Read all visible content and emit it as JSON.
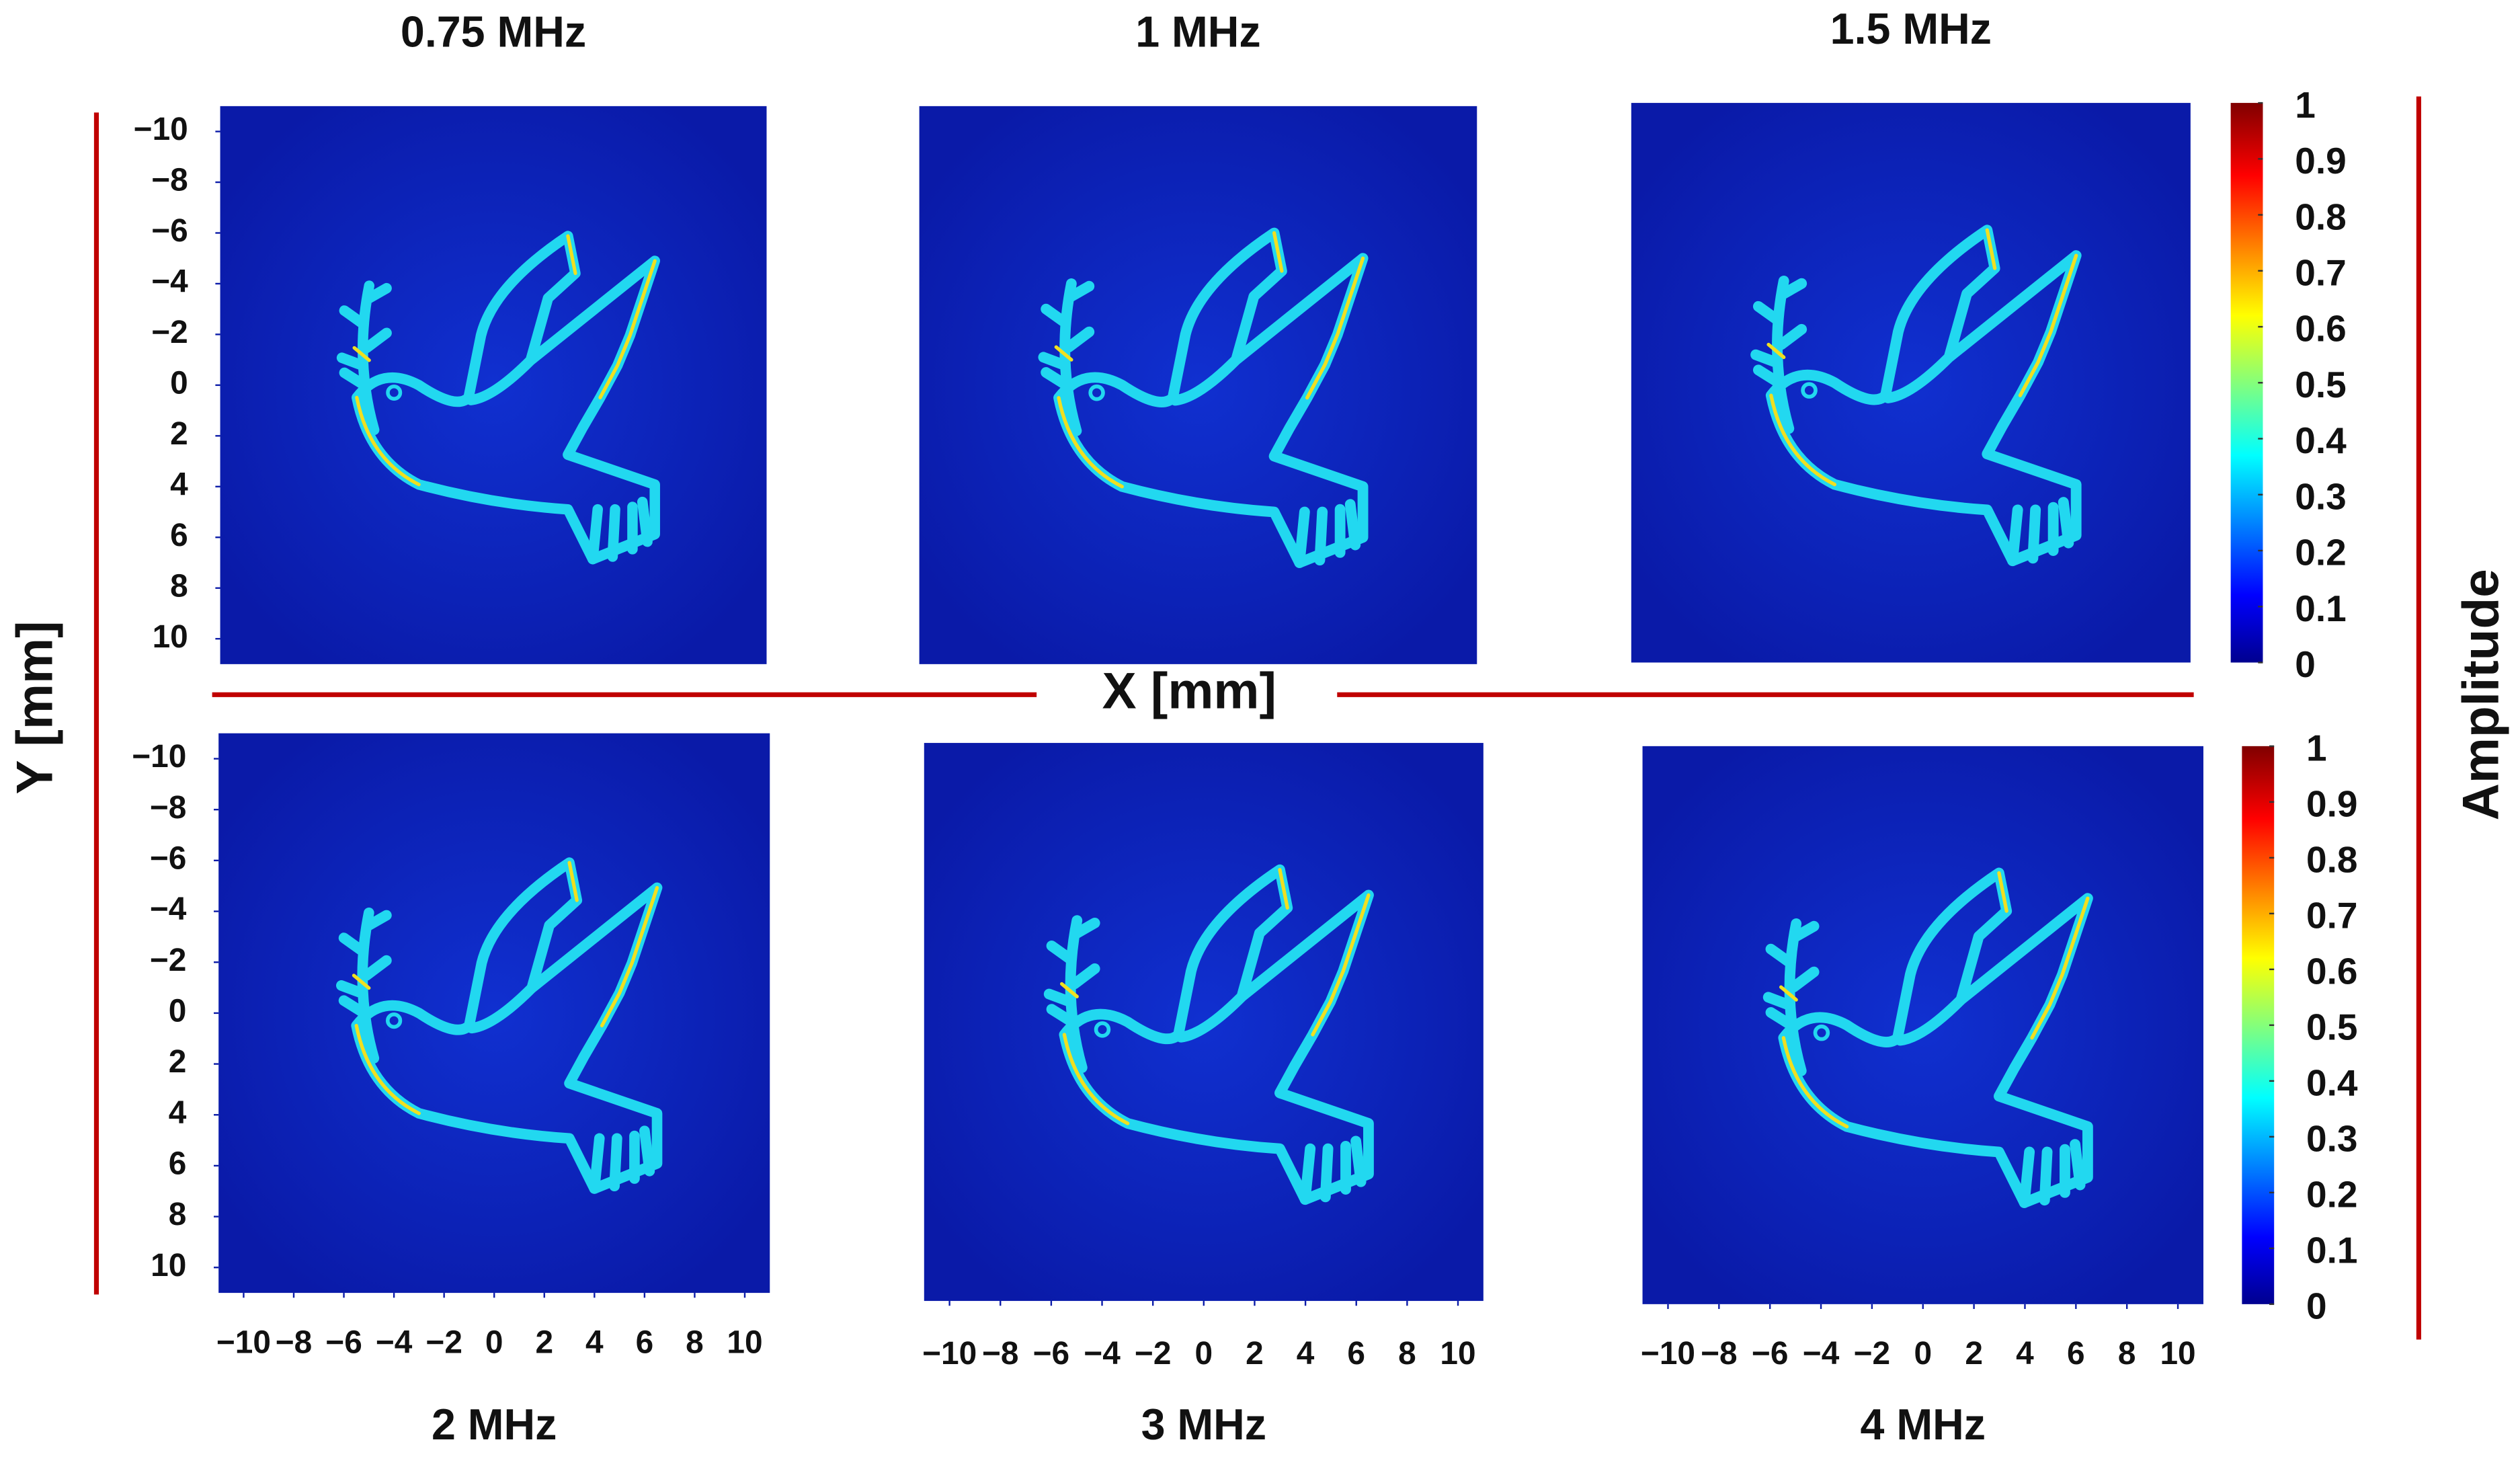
{
  "figure": {
    "x_label": "X [mm]",
    "y_label": "Y [mm]",
    "colorbar_label": "Amplitude"
  },
  "chart_data": [
    {
      "type": "heatmap",
      "title": "0.75 MHz",
      "xlim": [
        -11,
        11
      ],
      "ylim": [
        11,
        -11
      ],
      "yticks": [
        {
          "value": -10,
          "label": "−10"
        },
        {
          "value": -8,
          "label": "−8"
        },
        {
          "value": -6,
          "label": "−6"
        },
        {
          "value": -4,
          "label": "−4"
        },
        {
          "value": -2,
          "label": "−2"
        },
        0,
        2,
        4,
        6,
        8,
        10
      ]
    },
    {
      "type": "heatmap",
      "title": "1 MHz",
      "xlim": [
        -11,
        11
      ],
      "ylim": [
        11,
        -11
      ]
    },
    {
      "type": "heatmap",
      "title": "1.5 MHz",
      "xlim": [
        -11,
        11
      ],
      "ylim": [
        11,
        -11
      ]
    },
    {
      "type": "colorbar",
      "ylim": [
        0,
        1
      ],
      "yticks": [
        0,
        0.1,
        0.2,
        0.3,
        0.4,
        0.5,
        0.6,
        0.7,
        0.8,
        0.9,
        1
      ]
    },
    {
      "type": "heatmap",
      "title": "2 MHz",
      "xlim": [
        -11,
        11
      ],
      "ylim": [
        11,
        -11
      ],
      "yticks": [
        {
          "value": -10,
          "label": "−10"
        },
        {
          "value": -8,
          "label": "−8"
        },
        {
          "value": -6,
          "label": "−6"
        },
        {
          "value": -4,
          "label": "−4"
        },
        {
          "value": -2,
          "label": "−2"
        },
        0,
        2,
        4,
        6,
        8,
        10
      ],
      "xticks": [
        {
          "value": -10,
          "label": "−10"
        },
        {
          "value": -8,
          "label": "−8"
        },
        {
          "value": -6,
          "label": "−6"
        },
        {
          "value": -4,
          "label": "−4"
        },
        {
          "value": -2,
          "label": "−2"
        },
        0,
        2,
        4,
        6,
        8,
        10
      ]
    },
    {
      "type": "heatmap",
      "title": "3 MHz",
      "xlim": [
        -11,
        11
      ],
      "ylim": [
        11,
        -11
      ],
      "xticks": [
        {
          "value": -10,
          "label": "−10"
        },
        {
          "value": -8,
          "label": "−8"
        },
        {
          "value": -6,
          "label": "−6"
        },
        {
          "value": -4,
          "label": "−4"
        },
        {
          "value": -2,
          "label": "−2"
        },
        0,
        2,
        4,
        6,
        8,
        10
      ]
    },
    {
      "type": "heatmap",
      "title": "4 MHz",
      "xlim": [
        -11,
        11
      ],
      "ylim": [
        11,
        -11
      ],
      "xticks": [
        {
          "value": -10,
          "label": "−10"
        },
        {
          "value": -8,
          "label": "−8"
        },
        {
          "value": -6,
          "label": "−6"
        },
        {
          "value": -4,
          "label": "−4"
        },
        {
          "value": -2,
          "label": "−2"
        },
        0,
        2,
        4,
        6,
        8,
        10
      ]
    },
    {
      "type": "colorbar",
      "ylim": [
        0,
        1
      ],
      "yticks": [
        0,
        0.1,
        0.2,
        0.3,
        0.4,
        0.5,
        0.6,
        0.7,
        0.8,
        0.9,
        1
      ]
    }
  ]
}
